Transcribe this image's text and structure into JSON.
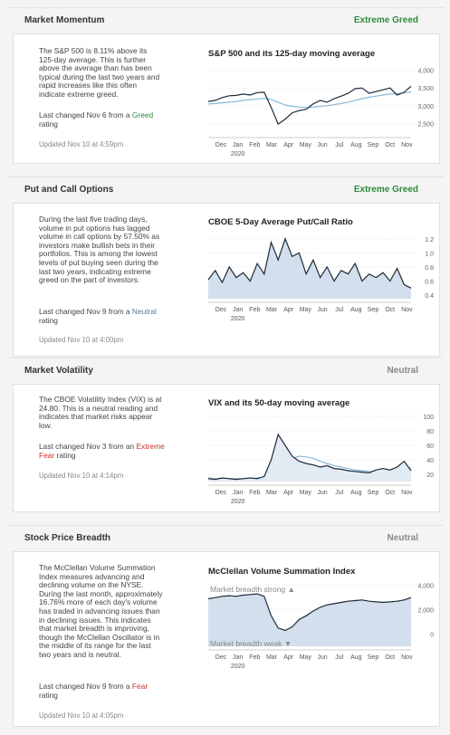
{
  "sections": [
    {
      "title": "Market Momentum",
      "rating": "Extreme Greed",
      "rating_color": "#2e8b3c",
      "description": "The S&P 500 is 8.11% above its 125-day average. This is further above the average than has been typical during the last two years and rapid increases like this often indicate extreme greed.",
      "last_changed": {
        "prefix": "Last changed Nov 6 from a ",
        "rating": "Greed",
        "rating_color": "#2e8b3c",
        "suffix": " rating"
      },
      "updated": "Updated Nov 10 at 4:59pm",
      "chart": {
        "type": "line",
        "title": "S&P 500 and its 125-day moving average",
        "x_labels": [
          "Dec",
          "Jan",
          "Feb",
          "Mar",
          "Apr",
          "May",
          "Jun",
          "Jul",
          "Aug",
          "Sep",
          "Oct",
          "Nov"
        ],
        "year_label": "2020",
        "ylim": [
          2200,
          4300
        ],
        "yticks": [
          {
            "value": 4000,
            "label": "4,000"
          },
          {
            "value": 3500,
            "label": "3,500"
          },
          {
            "value": 3000,
            "label": "3,000"
          },
          {
            "value": 2500,
            "label": "2,500"
          }
        ],
        "series": [
          {
            "color": "#8ab8d8",
            "values": [
              3050,
              3060,
              3080,
              3100,
              3120,
              3150,
              3170,
              3190,
              3210,
              3180,
              3100,
              3020,
              2980,
              2960,
              2950,
              2960,
              2980,
              3000,
              3030,
              3060,
              3100,
              3150,
              3200,
              3240,
              3270,
              3300,
              3330,
              3340,
              3360,
              3390
            ]
          },
          {
            "color": "#1c2b3a",
            "values": [
              3120,
              3150,
              3230,
              3280,
              3290,
              3330,
              3300,
              3370,
              3380,
              2950,
              2480,
              2620,
              2800,
              2860,
              2900,
              3050,
              3150,
              3100,
              3200,
              3270,
              3350,
              3480,
              3500,
              3350,
              3400,
              3450,
              3500,
              3300,
              3380,
              3550
            ]
          }
        ]
      }
    },
    {
      "title": "Put and Call Options",
      "rating": "Extreme Greed",
      "rating_color": "#2e8b3c",
      "description": "During the last five trading days, volume in put options has lagged volume in call options by 57.50% as investors make bullish bets in their portfolios. This is among the lowest levels of put buying seen during the last two years, indicating extreme greed on the part of investors.",
      "last_changed": {
        "prefix": "Last changed Nov 9 from a ",
        "rating": "Neutral",
        "rating_color": "#5a7a99",
        "suffix": " rating"
      },
      "updated": "Updated Nov 10 at 4:00pm",
      "chart": {
        "type": "line",
        "title": "CBOE 5-Day Average Put/Call Ratio",
        "x_labels": [
          "Dec",
          "Jan",
          "Feb",
          "Mar",
          "Apr",
          "May",
          "Jun",
          "Jul",
          "Aug",
          "Sep",
          "Oct",
          "Nov"
        ],
        "year_label": "2020",
        "ylim": [
          0.35,
          1.3
        ],
        "yticks": [
          1.2,
          {
            "value": 1,
            "label": "1.0"
          },
          0.8,
          0.6,
          0.4
        ],
        "series": [
          {
            "color": "#1c2b3a",
            "fill": "#d3dfec",
            "values": [
              0.62,
              0.75,
              0.58,
              0.8,
              0.65,
              0.72,
              0.6,
              0.85,
              0.7,
              1.15,
              0.9,
              1.2,
              0.95,
              1.0,
              0.7,
              0.9,
              0.65,
              0.8,
              0.6,
              0.75,
              0.7,
              0.85,
              0.6,
              0.7,
              0.65,
              0.72,
              0.6,
              0.78,
              0.55,
              0.5
            ]
          }
        ]
      }
    },
    {
      "title": "Market Volatility",
      "rating": "Neutral",
      "rating_color": "#888888",
      "description": "The CBOE Volatility Index (VIX) is at 24.80. This is a neutral reading and indicates that market risks appear low.",
      "last_changed": {
        "prefix": "Last changed Nov 3 from an ",
        "rating": "Extreme Fear",
        "rating_color": "#c8312b",
        "suffix": " rating"
      },
      "updated": "Updated Nov 10 at 4:14pm",
      "chart": {
        "type": "line",
        "title": "VIX and its 50-day moving average",
        "x_labels": [
          "Dec",
          "Jan",
          "Feb",
          "Mar",
          "Apr",
          "May",
          "Jun",
          "Jul",
          "Aug",
          "Sep",
          "Oct",
          "Nov"
        ],
        "year_label": "2020",
        "ylim": [
          10,
          105
        ],
        "yticks": [
          100,
          80,
          60,
          40,
          20
        ],
        "series": [
          {
            "color": "#8ab8d8",
            "values": [
              15,
              14,
              14,
              14,
              14,
              14,
              14,
              15,
              16,
              20,
              28,
              36,
              42,
              45,
              44,
              42,
              38,
              35,
              32,
              30,
              28,
              26,
              25,
              24,
              24,
              25,
              25,
              26,
              28,
              29
            ]
          },
          {
            "color": "#1c2b3a",
            "fill": "#e2eaf3",
            "values": [
              14,
              13,
              15,
              14,
              13,
              14,
              15,
              14,
              17,
              40,
              75,
              60,
              45,
              38,
              35,
              33,
              30,
              32,
              28,
              27,
              25,
              24,
              23,
              22,
              26,
              28,
              26,
              30,
              38,
              25
            ]
          }
        ]
      }
    },
    {
      "title": "Stock Price Breadth",
      "rating": "Neutral",
      "rating_color": "#888888",
      "description": "The McClellan Volume Summation Index measures advancing and declining volume on the NYSE. During the last month, approximately 16.76% more of each day's volume has traded in advancing issues than in declining issues. This indicates that market breadth is improving, though the McClellan Oscillator is in the middle of its range for the last two years and is neutral.",
      "last_changed": {
        "prefix": "Last changed Nov 9 from a ",
        "rating": "Fear",
        "rating_color": "#c8312b",
        "suffix": " rating"
      },
      "updated": "Updated Nov 10 at 4:05pm",
      "chart": {
        "type": "line",
        "title": "McClellan Volume Summation Index",
        "top_note": "Market breadth strong ▲",
        "bottom_note": "Market breadth weak ▼",
        "x_labels": [
          "Dec",
          "Jan",
          "Feb",
          "Mar",
          "Apr",
          "May",
          "Jun",
          "Jul",
          "Aug",
          "Sep",
          "Oct",
          "Nov"
        ],
        "year_label": "2020",
        "ylim": [
          -1000,
          4200
        ],
        "yticks": [
          {
            "value": 4000,
            "label": "4,000"
          },
          {
            "value": 2000,
            "label": "2,000"
          },
          0
        ],
        "series": [
          {
            "color": "#1c2b3a",
            "fill": "#d3dfec",
            "values": [
              2900,
              3000,
              3100,
              3150,
              3100,
              3200,
              3250,
              3300,
              3100,
              1500,
              500,
              300,
              600,
              1200,
              1500,
              1900,
              2200,
              2400,
              2500,
              2600,
              2700,
              2750,
              2800,
              2700,
              2650,
              2600,
              2650,
              2700,
              2800,
              3000
            ]
          }
        ]
      }
    }
  ]
}
